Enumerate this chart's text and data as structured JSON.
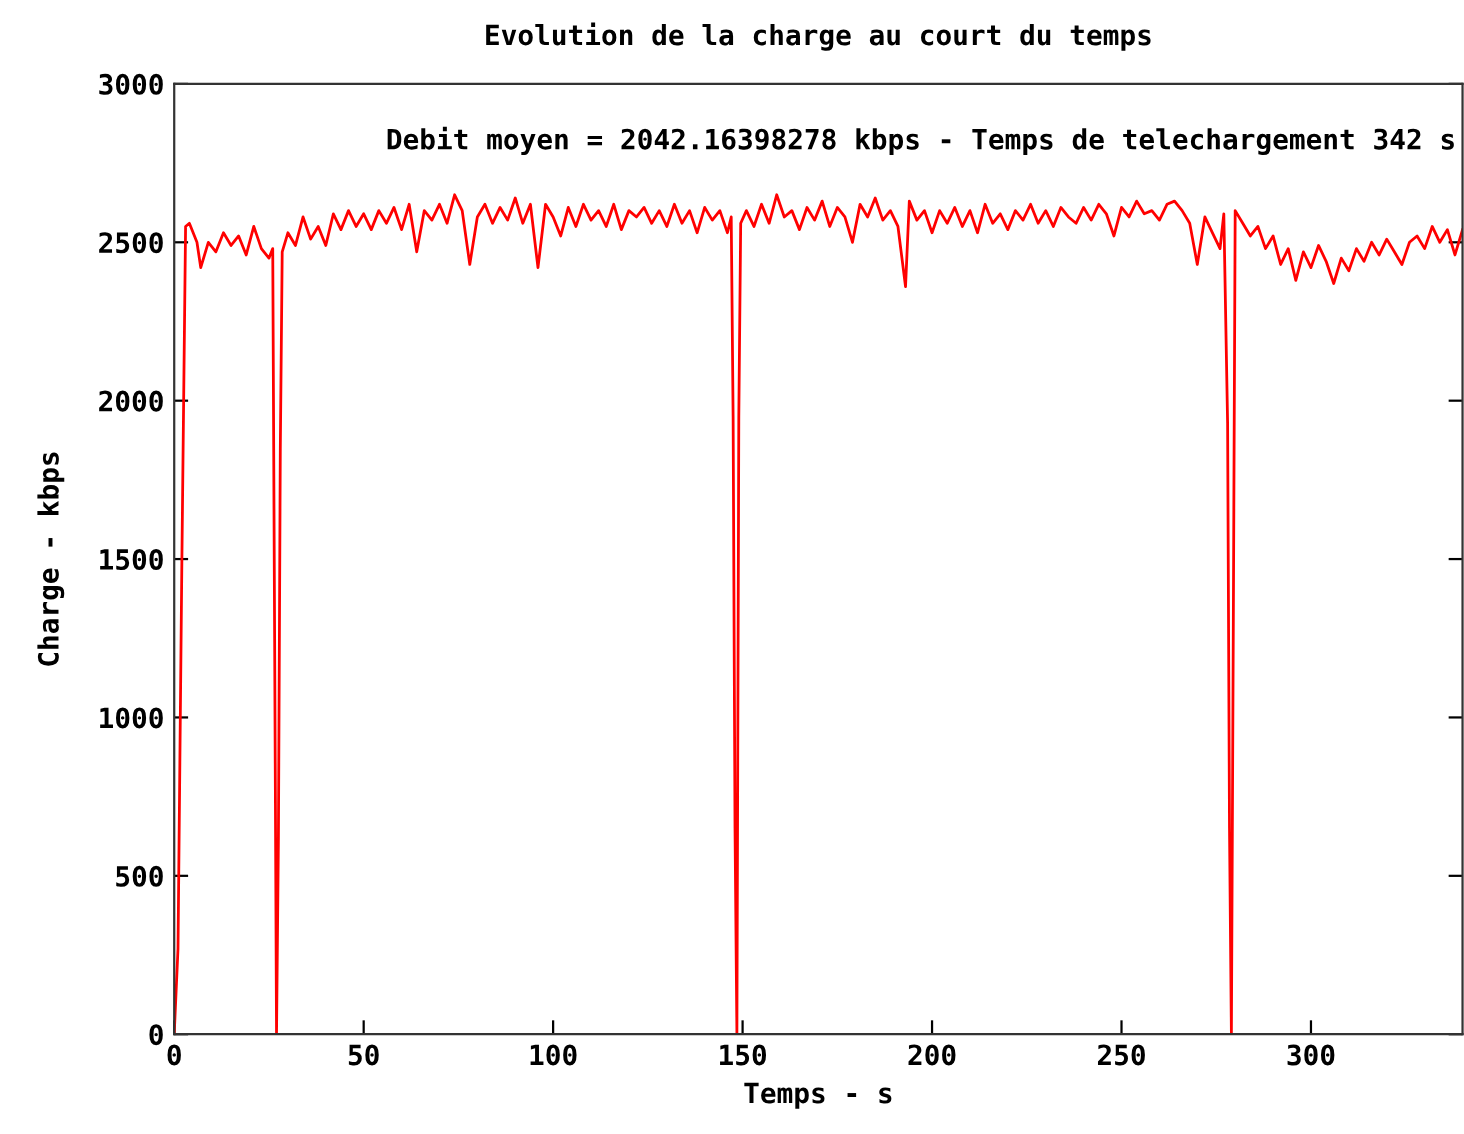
{
  "chart_data": {
    "type": "line",
    "title": "Evolution de la charge au court du temps",
    "xlabel": "Temps - s",
    "ylabel": "Charge - kbps",
    "annotations": [
      "Debit moyen = 2042.16398278 kbps - Temps de telechargement 342 s"
    ],
    "xlim": [
      0,
      340
    ],
    "xticks": [
      0,
      50,
      100,
      150,
      200,
      250,
      300
    ],
    "ylim": [
      0,
      3000
    ],
    "yticks": [
      0,
      500,
      1000,
      1500,
      2000,
      2500,
      3000
    ],
    "grid": false,
    "legend": false,
    "marker": "none",
    "line_style": "solid",
    "series": [
      {
        "color": "#ff0000",
        "x": [
          0,
          1,
          2,
          3,
          4,
          6,
          7,
          9,
          11,
          13,
          15,
          17,
          19,
          21,
          23,
          25,
          26,
          26.5,
          27,
          27.5,
          28,
          28.5,
          30,
          32,
          34,
          36,
          38,
          40,
          42,
          44,
          46,
          48,
          50,
          52,
          54,
          56,
          58,
          60,
          62,
          64,
          66,
          68,
          70,
          72,
          74,
          76,
          78,
          80,
          82,
          84,
          86,
          88,
          90,
          92,
          94,
          96,
          98,
          100,
          102,
          104,
          106,
          108,
          110,
          112,
          114,
          116,
          118,
          120,
          122,
          124,
          126,
          128,
          130,
          132,
          134,
          136,
          138,
          140,
          142,
          144,
          146,
          147,
          147.5,
          148,
          148.5,
          149,
          149.5,
          151,
          153,
          155,
          157,
          159,
          161,
          163,
          165,
          167,
          169,
          171,
          173,
          175,
          177,
          179,
          181,
          183,
          185,
          187,
          189,
          191,
          193,
          194,
          196,
          198,
          200,
          202,
          204,
          206,
          208,
          210,
          212,
          214,
          216,
          218,
          220,
          222,
          224,
          226,
          228,
          230,
          232,
          234,
          236,
          238,
          240,
          242,
          244,
          246,
          248,
          250,
          252,
          254,
          256,
          258,
          260,
          262,
          264,
          266,
          268,
          270,
          272,
          274,
          276,
          277,
          278,
          278.5,
          279,
          279.5,
          280,
          282,
          284,
          286,
          288,
          290,
          292,
          294,
          296,
          298,
          300,
          302,
          304,
          306,
          308,
          310,
          312,
          314,
          316,
          318,
          320,
          322,
          324,
          326,
          328,
          330,
          332,
          334,
          336,
          338,
          340
        ],
        "values": [
          0,
          270,
          1470,
          2550,
          2560,
          2500,
          2420,
          2500,
          2470,
          2530,
          2490,
          2520,
          2460,
          2550,
          2480,
          2450,
          2480,
          1250,
          0,
          620,
          1850,
          2470,
          2530,
          2490,
          2580,
          2510,
          2550,
          2490,
          2590,
          2540,
          2600,
          2550,
          2590,
          2540,
          2600,
          2560,
          2610,
          2540,
          2620,
          2470,
          2600,
          2570,
          2620,
          2560,
          2650,
          2600,
          2430,
          2580,
          2620,
          2560,
          2610,
          2570,
          2640,
          2560,
          2620,
          2420,
          2620,
          2580,
          2520,
          2610,
          2550,
          2620,
          2570,
          2600,
          2550,
          2620,
          2540,
          2600,
          2580,
          2610,
          2560,
          2600,
          2550,
          2620,
          2560,
          2600,
          2530,
          2610,
          2570,
          2600,
          2530,
          2580,
          1950,
          650,
          0,
          1950,
          2560,
          2600,
          2550,
          2620,
          2560,
          2650,
          2580,
          2600,
          2540,
          2610,
          2570,
          2630,
          2550,
          2610,
          2580,
          2500,
          2620,
          2580,
          2640,
          2570,
          2600,
          2550,
          2360,
          2630,
          2570,
          2600,
          2530,
          2600,
          2560,
          2610,
          2550,
          2600,
          2530,
          2620,
          2560,
          2590,
          2540,
          2600,
          2570,
          2620,
          2560,
          2600,
          2550,
          2610,
          2580,
          2560,
          2610,
          2570,
          2620,
          2590,
          2520,
          2610,
          2580,
          2630,
          2590,
          2600,
          2570,
          2620,
          2630,
          2600,
          2560,
          2430,
          2580,
          2530,
          2480,
          2590,
          1930,
          650,
          0,
          1280,
          2600,
          2560,
          2520,
          2550,
          2480,
          2520,
          2430,
          2480,
          2380,
          2470,
          2420,
          2490,
          2440,
          2370,
          2450,
          2410,
          2480,
          2440,
          2500,
          2460,
          2510,
          2470,
          2430,
          2500,
          2520,
          2480,
          2550,
          2500,
          2540,
          2460,
          2540
        ]
      }
    ]
  }
}
